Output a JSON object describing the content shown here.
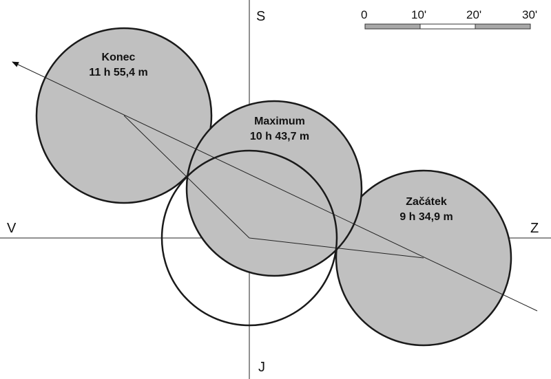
{
  "directions": {
    "north": "S",
    "south": "J",
    "east": "V",
    "west": "Z"
  },
  "positions": {
    "end": {
      "name": "Konec",
      "time": "11 h 55,4 m"
    },
    "max": {
      "name": "Maximum",
      "time": "10 h 43,7 m"
    },
    "start": {
      "name": "Začátek",
      "time": "9 h 34,9 m"
    }
  },
  "scale": {
    "labels": [
      "0",
      "10'",
      "20'",
      "30'"
    ]
  },
  "colors": {
    "disk_fill": "#c0c0c0",
    "outline": "#1a1a1a",
    "scale_gray": "#a8a8a8"
  }
}
